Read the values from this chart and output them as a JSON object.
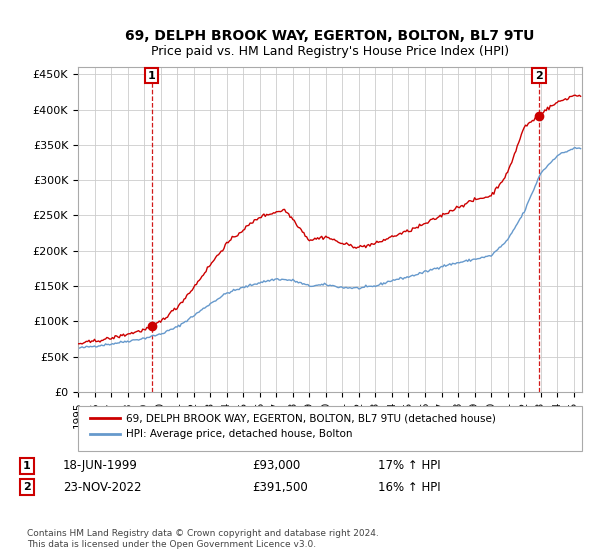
{
  "title": "69, DELPH BROOK WAY, EGERTON, BOLTON, BL7 9TU",
  "subtitle": "Price paid vs. HM Land Registry's House Price Index (HPI)",
  "ylabel_ticks": [
    "£0",
    "£50K",
    "£100K",
    "£150K",
    "£200K",
    "£250K",
    "£300K",
    "£350K",
    "£400K",
    "£450K"
  ],
  "ytick_values": [
    0,
    50000,
    100000,
    150000,
    200000,
    250000,
    300000,
    350000,
    400000,
    450000
  ],
  "ylim": [
    0,
    460000
  ],
  "xlim_start": 1995.0,
  "xlim_end": 2025.5,
  "transaction1": {
    "date_num": 1999.46,
    "price": 93000,
    "label": "1"
  },
  "transaction2": {
    "date_num": 2022.9,
    "price": 391500,
    "label": "2"
  },
  "legend_line1": "69, DELPH BROOK WAY, EGERTON, BOLTON, BL7 9TU (detached house)",
  "legend_line2": "HPI: Average price, detached house, Bolton",
  "footer": "Contains HM Land Registry data © Crown copyright and database right 2024.\nThis data is licensed under the Open Government Licence v3.0.",
  "line_red": "#cc0000",
  "line_blue": "#6699cc",
  "background_color": "#ffffff",
  "grid_color": "#cccccc",
  "hpi_waypoints_x": [
    1995.0,
    1996.0,
    1997.0,
    1998.0,
    1999.0,
    2000.0,
    2001.0,
    2002.0,
    2003.0,
    2004.0,
    2005.0,
    2006.0,
    2007.0,
    2008.0,
    2009.0,
    2010.0,
    2011.0,
    2012.0,
    2013.0,
    2014.0,
    2015.0,
    2016.0,
    2017.0,
    2018.0,
    2019.0,
    2020.0,
    2021.0,
    2022.0,
    2023.0,
    2024.0,
    2025.0
  ],
  "hpi_waypoints_y": [
    62000,
    65000,
    68000,
    72000,
    76000,
    82000,
    92000,
    108000,
    125000,
    140000,
    148000,
    155000,
    160000,
    158000,
    150000,
    152000,
    148000,
    147000,
    150000,
    158000,
    163000,
    170000,
    178000,
    183000,
    188000,
    193000,
    215000,
    255000,
    310000,
    335000,
    345000
  ],
  "prop_waypoints_x": [
    1995.0,
    1996.0,
    1997.0,
    1998.0,
    1999.0,
    1999.5,
    2000.0,
    2001.0,
    2002.0,
    2003.0,
    2004.0,
    2005.0,
    2006.0,
    2007.0,
    2007.5,
    2008.0,
    2009.0,
    2010.0,
    2011.0,
    2012.0,
    2013.0,
    2014.0,
    2015.0,
    2016.0,
    2017.0,
    2018.0,
    2019.0,
    2020.0,
    2021.0,
    2022.0,
    2022.9,
    2023.0,
    2024.0,
    2025.0
  ],
  "prop_waypoints_y": [
    68000,
    72000,
    76000,
    82000,
    88000,
    93000,
    100000,
    120000,
    148000,
    180000,
    210000,
    230000,
    248000,
    255000,
    258000,
    245000,
    215000,
    220000,
    210000,
    205000,
    210000,
    220000,
    228000,
    238000,
    250000,
    262000,
    272000,
    278000,
    310000,
    375000,
    391500,
    395000,
    410000,
    420000
  ]
}
